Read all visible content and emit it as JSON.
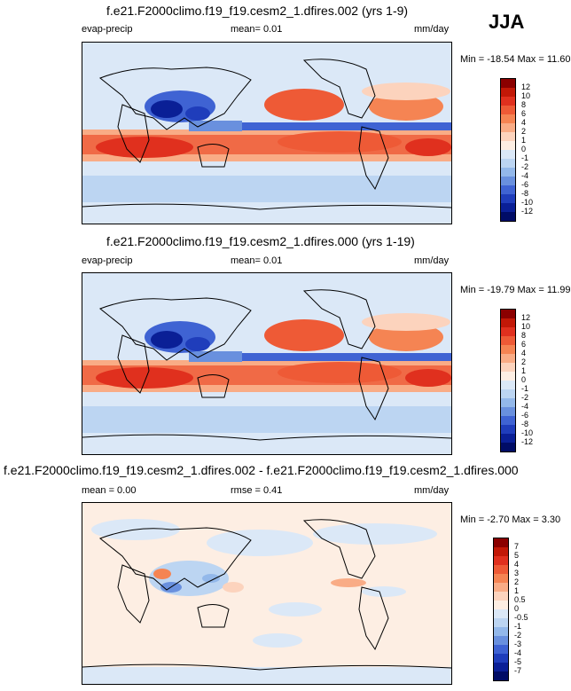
{
  "season": "JJA",
  "panels": [
    {
      "title": "f.e21.F2000climo.f19_f19.cesm2_1.dfires.002 (yrs 1-9)",
      "left_label": "evap-precip",
      "mean_text": "mean=  0.01",
      "units": "mm/day",
      "minmax": "Min = -18.54 Max = 11.60",
      "levels": [
        "12",
        "10",
        "8",
        "6",
        "4",
        "2",
        "1",
        "0",
        "-1",
        "-2",
        "-4",
        "-6",
        "-8",
        "-10",
        "-12"
      ]
    },
    {
      "title": "f.e21.F2000climo.f19_f19.cesm2_1.dfires.000 (yrs 1-19)",
      "left_label": "evap-precip",
      "mean_text": "mean=  0.01",
      "units": "mm/day",
      "minmax": "Min = -19.79 Max = 11.99",
      "levels": [
        "12",
        "10",
        "8",
        "6",
        "4",
        "2",
        "1",
        "0",
        "-1",
        "-2",
        "-4",
        "-6",
        "-8",
        "-10",
        "-12"
      ]
    },
    {
      "title": "f.e21.F2000climo.f19_f19.cesm2_1.dfires.002 - f.e21.F2000climo.f19_f19.cesm2_1.dfires.000",
      "left_label": "mean =  0.00",
      "mean_text": "rmse =  0.41",
      "units": "mm/day",
      "minmax": "Min = -2.70 Max =  3.30",
      "levels": [
        "7",
        "5",
        "4",
        "3",
        "2",
        "1",
        "0.5",
        "0",
        "-0.5",
        "-1",
        "-2",
        "-3",
        "-4",
        "-5",
        "-7"
      ]
    }
  ],
  "colors": {
    "scale": [
      "#8b0000",
      "#c21807",
      "#e0301e",
      "#ee5a36",
      "#f58453",
      "#f9ac86",
      "#fcd3bd",
      "#fdeee3",
      "#dbe8f7",
      "#bcd5f2",
      "#93b8ea",
      "#6990de",
      "#3f63d3",
      "#1f3dbb",
      "#0a1f96",
      "#000c66"
    ]
  },
  "chart_data": [
    {
      "type": "heatmap",
      "title": "f.e21.F2000climo.f19_f19.cesm2_1.dfires.002 (yrs 1-9)",
      "variable": "evap-precip",
      "units": "mm/day",
      "mean": 0.01,
      "min": -18.54,
      "max": 11.6,
      "colorbar_levels": [
        -12,
        -10,
        -8,
        -6,
        -4,
        -2,
        -1,
        0,
        1,
        2,
        4,
        6,
        8,
        10,
        12
      ]
    },
    {
      "type": "heatmap",
      "title": "f.e21.F2000climo.f19_f19.cesm2_1.dfires.000 (yrs 1-19)",
      "variable": "evap-precip",
      "units": "mm/day",
      "mean": 0.01,
      "min": -19.79,
      "max": 11.99,
      "colorbar_levels": [
        -12,
        -10,
        -8,
        -6,
        -4,
        -2,
        -1,
        0,
        1,
        2,
        4,
        6,
        8,
        10,
        12
      ]
    },
    {
      "type": "heatmap",
      "title": "f.e21.F2000climo.f19_f19.cesm2_1.dfires.002 - f.e21.F2000climo.f19_f19.cesm2_1.dfires.000",
      "units": "mm/day",
      "mean": 0.0,
      "rmse": 0.41,
      "min": -2.7,
      "max": 3.3,
      "colorbar_levels": [
        -7,
        -5,
        -4,
        -3,
        -2,
        -1,
        -0.5,
        0,
        0.5,
        1,
        2,
        3,
        4,
        5,
        7
      ]
    }
  ]
}
